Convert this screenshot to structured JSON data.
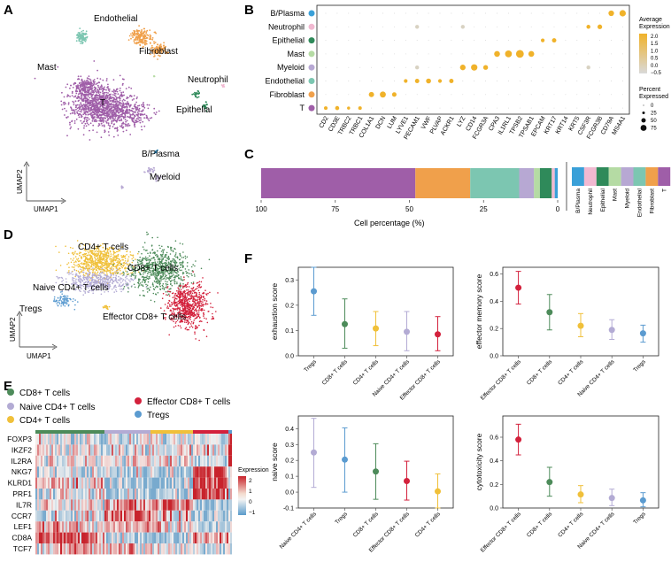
{
  "panels": {
    "A": "A",
    "B": "B",
    "C": "C",
    "D": "D",
    "E": "E",
    "F": "F"
  },
  "umapA": {
    "xlabel": "UMAP1",
    "ylabel": "UMAP2",
    "labels": [
      "Endothelial",
      "Fibroblast",
      "Mast",
      "Neutrophil",
      "T",
      "Epithelial",
      "B/Plasma",
      "Myeloid"
    ]
  },
  "dotplot": {
    "rows": [
      "B/Plasma",
      "Neutrophil",
      "Epithelial",
      "Mast",
      "Myeloid",
      "Endothelial",
      "Fibroblast",
      "T"
    ],
    "row_colors": [
      "#3aa0d8",
      "#f1b9d1",
      "#2f8a5a",
      "#b5dba4",
      "#b7a8d3",
      "#7cc6b1",
      "#f0a04b",
      "#9f5ea8"
    ],
    "genes": [
      "CD2",
      "CD3E",
      "TRBC2",
      "TRBC1",
      "COL1A1",
      "DCN",
      "LUM",
      "LYVE1",
      "PECAM1",
      "VWF",
      "PLVAP",
      "ACKR1",
      "LYZ",
      "CD14",
      "FCGR3A",
      "CPA3",
      "IL1RL1",
      "TPSB2",
      "TPSAB1",
      "EPCAM",
      "KRT17",
      "KRT14",
      "KRT5",
      "CSF3R",
      "FCGR3B",
      "CD79A",
      "MS4A1"
    ],
    "legend_expr_title": "Average\nExpression",
    "legend_expr_ticks": [
      "2.0",
      "1.5",
      "1.0",
      "0.5",
      "0.0",
      "−0.5"
    ],
    "legend_pct_title": "Percent\nExpressed",
    "legend_pct_ticks": [
      "0",
      "25",
      "50",
      "75"
    ]
  },
  "stackbar": {
    "xlabel": "Cell percentage (%)",
    "ticks": [
      "100",
      "75",
      "50",
      "25",
      "0"
    ],
    "segments": [
      {
        "name": "T",
        "pct": 52.0,
        "color": "#9f5ea8"
      },
      {
        "name": "Fibroblast",
        "pct": 18.5,
        "color": "#f0a04b"
      },
      {
        "name": "Endothelial",
        "pct": 16.5,
        "color": "#7cc6b1"
      },
      {
        "name": "Myeloid",
        "pct": 5.0,
        "color": "#b7a8d3"
      },
      {
        "name": "Mast",
        "pct": 2.0,
        "color": "#b5dba4"
      },
      {
        "name": "Epithelial",
        "pct": 4.0,
        "color": "#2f8a5a"
      },
      {
        "name": "Neutrophil",
        "pct": 1.0,
        "color": "#f1b9d1"
      },
      {
        "name": "B/Plasma",
        "pct": 1.0,
        "color": "#3aa0d8"
      }
    ],
    "legend": [
      "B/Plasma",
      "Neutrophil",
      "Epithelial",
      "Mast",
      "Myeloid",
      "Endothelial",
      "Fibroblast",
      "T"
    ]
  },
  "umapD": {
    "xlabel": "UMAP1",
    "ylabel": "UMAP2",
    "labels": [
      "CD4+ T cells",
      "CD8+ T cells",
      "Naive CD4+ T cells",
      "Tregs",
      "Effector CD8+ T cells"
    ]
  },
  "heatmap": {
    "legend": [
      {
        "name": "CD8+ T cells",
        "color": "#4d8b5a"
      },
      {
        "name": "Naive CD4+ T cells",
        "color": "#b3abd4"
      },
      {
        "name": "CD4+ T cells",
        "color": "#f0c03a"
      },
      {
        "name": "Effector CD8+ T cells",
        "color": "#d3213c"
      },
      {
        "name": "Tregs",
        "color": "#5b9bd0"
      }
    ],
    "genes": [
      "FOXP3",
      "IKZF2",
      "IL2RA",
      "NKG7",
      "KLRD1",
      "PRF1",
      "IL7R",
      "CCR7",
      "LEF1",
      "CD8A",
      "TCF7"
    ],
    "cbar_title": "Expression",
    "cbar_ticks": [
      "2",
      "1",
      "0",
      "−1"
    ]
  },
  "chart_data": [
    {
      "type": "scatter",
      "title": "",
      "ylabel": "exhaustion score",
      "ylim": [
        0,
        0.35
      ],
      "yticks": [
        "0.0",
        "0.1",
        "0.2",
        "0.3"
      ],
      "categories": [
        "Tregs",
        "CD8+ T cells",
        "CD4+ T cells",
        "Naive CD4+ T cells",
        "Effector CD8+ T cells"
      ],
      "values": [
        0.255,
        0.125,
        0.108,
        0.095,
        0.085
      ],
      "lower": [
        0.16,
        0.03,
        0.04,
        0.02,
        0.02
      ],
      "upper": [
        0.35,
        0.225,
        0.175,
        0.175,
        0.155
      ],
      "colors": [
        "#5b9bd0",
        "#4d8b5a",
        "#f0c03a",
        "#b3abd4",
        "#d3213c"
      ]
    },
    {
      "type": "scatter",
      "title": "",
      "ylabel": "effector memory score",
      "ylim": [
        0,
        0.65
      ],
      "yticks": [
        "0.0",
        "0.2",
        "0.4",
        "0.6"
      ],
      "categories": [
        "Effector CD8+ T cells",
        "CD8+ T cells",
        "CD4+ T cells",
        "Naive CD4+ T cells",
        "Tregs"
      ],
      "values": [
        0.5,
        0.32,
        0.22,
        0.19,
        0.165
      ],
      "lower": [
        0.38,
        0.19,
        0.14,
        0.12,
        0.1
      ],
      "upper": [
        0.62,
        0.45,
        0.31,
        0.265,
        0.225
      ],
      "colors": [
        "#d3213c",
        "#4d8b5a",
        "#f0c03a",
        "#b3abd4",
        "#5b9bd0"
      ]
    },
    {
      "type": "scatter",
      "title": "",
      "ylabel": "naive score",
      "ylim": [
        -0.1,
        0.48
      ],
      "yticks": [
        "-0.1",
        "0.0",
        "0.1",
        "0.2",
        "0.3",
        "0.4"
      ],
      "categories": [
        "Naive CD4+ T cells",
        "Tregs",
        "CD8+ T cells",
        "Effector CD8+ T cells",
        "CD4+ T cells"
      ],
      "values": [
        0.25,
        0.205,
        0.13,
        0.07,
        0.005
      ],
      "lower": [
        0.03,
        0.0,
        -0.045,
        -0.05,
        -0.1
      ],
      "upper": [
        0.465,
        0.405,
        0.305,
        0.195,
        0.115
      ],
      "colors": [
        "#b3abd4",
        "#5b9bd0",
        "#4d8b5a",
        "#d3213c",
        "#f0c03a"
      ]
    },
    {
      "type": "scatter",
      "title": "",
      "ylabel": "cytotoxicity score",
      "ylim": [
        0,
        0.78
      ],
      "yticks": [
        "0.0",
        "0.2",
        "0.4",
        "0.6"
      ],
      "categories": [
        "Effector CD8+ T cells",
        "CD8+ T cells",
        "CD4+ T cells",
        "Naive CD4+ T cells",
        "Tregs"
      ],
      "values": [
        0.58,
        0.22,
        0.115,
        0.085,
        0.065
      ],
      "lower": [
        0.45,
        0.1,
        0.045,
        0.02,
        0.01
      ],
      "upper": [
        0.71,
        0.345,
        0.19,
        0.16,
        0.13
      ],
      "colors": [
        "#d3213c",
        "#4d8b5a",
        "#f0c03a",
        "#b3abd4",
        "#5b9bd0"
      ]
    }
  ]
}
